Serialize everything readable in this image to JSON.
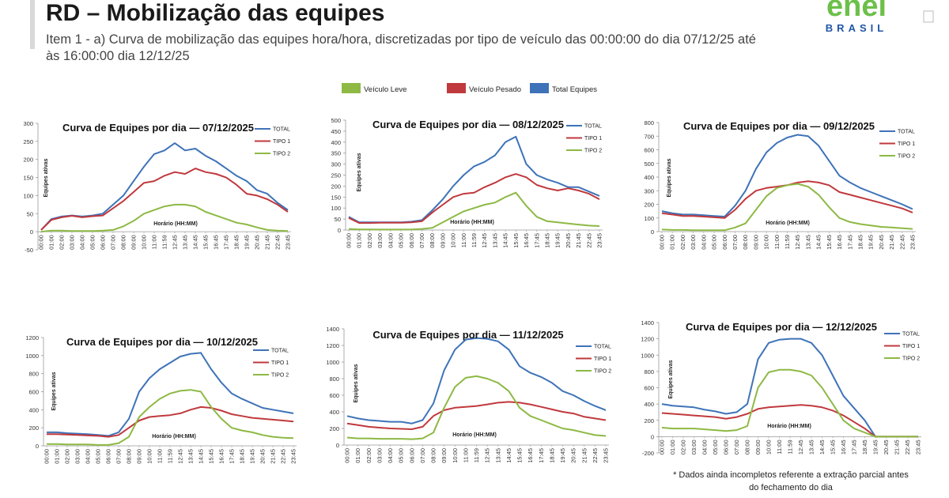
{
  "header": {
    "title": "RD – Mobilização das equipes",
    "subtitle": [
      "Item 1 - a) Curva de mobilização das equipes hora/hora, discretizadas por tipo de veículo das 00:00:00 do dia 07/12/25 até",
      "às 16:00:00 dia 12/12/25"
    ],
    "logo": {
      "name": "enel",
      "country": "BRASIL"
    }
  },
  "legend": [
    {
      "label": "Veículo Leve",
      "color": "#8db944"
    },
    {
      "label": "Veículo Pesado",
      "color": "#c0393d"
    },
    {
      "label": "Total Equipes",
      "color": "#3e73b8"
    }
  ],
  "footnote": [
    "* Dados ainda incompletos referente a extração parcial antes",
    "do fechamento do dia"
  ],
  "chart_data": [
    {
      "type": "line",
      "title": "Curva de Equipes por dia — 07/12/2025",
      "x_label": "Horário (HH:MM)",
      "y_label": "Equipes ativas",
      "categories": [
        "00:00",
        "01:00",
        "02:00",
        "03:00",
        "04:00",
        "05:00",
        "06:00",
        "07:00",
        "08:00",
        "09:00",
        "10:00",
        "11:00",
        "11:59",
        "12:45",
        "13:45",
        "14:45",
        "15:45",
        "16:45",
        "17:45",
        "18:45",
        "19:45",
        "20:45",
        "21:45",
        "22:45",
        "23:45"
      ],
      "ylim": [
        -50,
        300
      ],
      "yticks": [
        -50,
        0,
        50,
        100,
        150,
        200,
        250,
        300
      ],
      "series": [
        {
          "name": "TOTAL",
          "color": "#3e73b8",
          "values": [
            5,
            35,
            42,
            45,
            42,
            45,
            50,
            75,
            100,
            140,
            180,
            215,
            225,
            245,
            225,
            230,
            210,
            195,
            175,
            155,
            140,
            115,
            105,
            80,
            60
          ]
        },
        {
          "name": "TIPO 1",
          "color": "#c0393d",
          "values": [
            5,
            33,
            40,
            44,
            40,
            43,
            45,
            65,
            85,
            110,
            135,
            140,
            155,
            165,
            160,
            175,
            165,
            160,
            150,
            130,
            105,
            100,
            90,
            75,
            55
          ]
        },
        {
          "name": "TIPO 2",
          "color": "#8db944",
          "values": [
            0,
            3,
            3,
            2,
            2,
            2,
            3,
            5,
            15,
            30,
            50,
            60,
            70,
            75,
            75,
            70,
            55,
            45,
            35,
            25,
            20,
            12,
            5,
            3,
            2
          ]
        }
      ]
    },
    {
      "type": "line",
      "title": "Curva de Equipes por dia — 08/12/2025",
      "x_label": "Horário (HH:MM)",
      "y_label": "Equipes ativas",
      "categories": [
        "00:00",
        "01:00",
        "02:00",
        "03:00",
        "04:00",
        "05:00",
        "06:00",
        "07:00",
        "08:00",
        "09:00",
        "10:00",
        "11:00",
        "11:59",
        "12:45",
        "13:45",
        "14:45",
        "15:45",
        "16:45",
        "17:45",
        "18:45",
        "19:45",
        "20:45",
        "21:45",
        "22:45",
        "23:45"
      ],
      "ylim": [
        0,
        500
      ],
      "yticks": [
        0,
        50,
        100,
        150,
        200,
        250,
        300,
        350,
        400,
        450,
        500
      ],
      "series": [
        {
          "name": "TOTAL",
          "color": "#3e73b8",
          "values": [
            60,
            35,
            35,
            35,
            35,
            35,
            38,
            45,
            90,
            140,
            200,
            250,
            290,
            310,
            340,
            400,
            425,
            300,
            250,
            230,
            215,
            195,
            195,
            175,
            155
          ]
        },
        {
          "name": "TIPO 1",
          "color": "#c0393d",
          "values": [
            55,
            32,
            32,
            33,
            33,
            33,
            35,
            40,
            80,
            115,
            150,
            165,
            170,
            195,
            215,
            240,
            255,
            240,
            205,
            190,
            180,
            190,
            180,
            165,
            140
          ]
        },
        {
          "name": "TIPO 2",
          "color": "#8db944",
          "values": [
            5,
            3,
            3,
            2,
            2,
            2,
            3,
            5,
            10,
            35,
            60,
            85,
            100,
            115,
            125,
            150,
            170,
            110,
            60,
            40,
            35,
            30,
            25,
            20,
            18
          ]
        }
      ]
    },
    {
      "type": "line",
      "title": "Curva de Equipes por dia — 09/12/2025",
      "x_label": "Horário (HH:MM)",
      "y_label": "Equipes ativas",
      "categories": [
        "00:00",
        "01:00",
        "02:00",
        "03:00",
        "04:00",
        "05:00",
        "06:00",
        "07:00",
        "08:00",
        "09:00",
        "10:00",
        "11:00",
        "11:59",
        "12:45",
        "13:45",
        "14:45",
        "15:45",
        "16:45",
        "17:45",
        "18:45",
        "19:45",
        "20:45",
        "21:45",
        "22:45",
        "23:45"
      ],
      "ylim": [
        0,
        800
      ],
      "yticks": [
        0,
        100,
        200,
        300,
        400,
        500,
        600,
        700,
        800
      ],
      "series": [
        {
          "name": "TOTAL",
          "color": "#3e73b8",
          "values": [
            150,
            135,
            125,
            125,
            120,
            115,
            110,
            190,
            300,
            460,
            580,
            650,
            690,
            710,
            700,
            630,
            520,
            410,
            360,
            320,
            290,
            260,
            230,
            200,
            165
          ]
        },
        {
          "name": "TIPO 1",
          "color": "#c0393d",
          "values": [
            135,
            125,
            115,
            115,
            110,
            105,
            100,
            160,
            240,
            300,
            320,
            330,
            340,
            360,
            370,
            360,
            340,
            290,
            270,
            250,
            230,
            210,
            190,
            170,
            140
          ]
        },
        {
          "name": "TIPO 2",
          "color": "#8db944",
          "values": [
            15,
            12,
            12,
            10,
            10,
            10,
            10,
            30,
            60,
            160,
            260,
            320,
            340,
            350,
            330,
            270,
            180,
            100,
            70,
            55,
            45,
            35,
            30,
            25,
            20
          ]
        }
      ]
    },
    {
      "type": "line",
      "title": "Curva de Equipes por dia — 10/12/2025",
      "x_label": "Horário (HH:MM)",
      "y_label": "Equipes ativas",
      "categories": [
        "00:00",
        "01:00",
        "02:00",
        "03:00",
        "04:00",
        "05:00",
        "06:00",
        "07:00",
        "08:00",
        "09:00",
        "10:00",
        "11:00",
        "11:59",
        "12:45",
        "13:45",
        "14:45",
        "15:45",
        "16:45",
        "17:45",
        "18:45",
        "19:45",
        "20:45",
        "21:45",
        "22:45",
        "23:45"
      ],
      "ylim": [
        0,
        1200
      ],
      "yticks": [
        0,
        200,
        400,
        600,
        800,
        1000,
        1200
      ],
      "series": [
        {
          "name": "TOTAL",
          "color": "#3e73b8",
          "values": [
            150,
            150,
            140,
            135,
            130,
            120,
            110,
            150,
            300,
            600,
            750,
            850,
            920,
            990,
            1020,
            1030,
            850,
            700,
            580,
            520,
            470,
            420,
            400,
            380,
            360
          ]
        },
        {
          "name": "TIPO 1",
          "color": "#c0393d",
          "values": [
            130,
            130,
            125,
            120,
            115,
            110,
            100,
            120,
            200,
            280,
            320,
            330,
            340,
            360,
            400,
            430,
            420,
            390,
            350,
            330,
            310,
            300,
            290,
            280,
            270
          ]
        },
        {
          "name": "TIPO 2",
          "color": "#8db944",
          "values": [
            20,
            20,
            15,
            15,
            15,
            10,
            10,
            30,
            100,
            320,
            430,
            520,
            580,
            610,
            620,
            600,
            430,
            300,
            200,
            170,
            150,
            120,
            100,
            90,
            85
          ]
        }
      ]
    },
    {
      "type": "line",
      "title": "Curva de Equipes por dia — 11/12/2025",
      "x_label": "Horário (HH:MM)",
      "y_label": "Equipes ativas",
      "categories": [
        "00:00",
        "01:00",
        "02:00",
        "03:00",
        "04:00",
        "05:00",
        "06:00",
        "07:00",
        "08:00",
        "09:00",
        "10:00",
        "11:00",
        "11:59",
        "12:45",
        "13:45",
        "14:45",
        "15:45",
        "16:45",
        "17:45",
        "18:45",
        "19:45",
        "20:45",
        "21:45",
        "22:45",
        "23:45"
      ],
      "ylim": [
        0,
        1400
      ],
      "yticks": [
        0,
        200,
        400,
        600,
        800,
        1000,
        1200,
        1400
      ],
      "series": [
        {
          "name": "TOTAL",
          "color": "#3e73b8",
          "values": [
            350,
            320,
            300,
            290,
            280,
            280,
            260,
            300,
            500,
            900,
            1150,
            1270,
            1290,
            1280,
            1250,
            1150,
            950,
            870,
            820,
            750,
            650,
            600,
            530,
            470,
            420
          ]
        },
        {
          "name": "TIPO 1",
          "color": "#c0393d",
          "values": [
            260,
            240,
            220,
            210,
            200,
            195,
            190,
            220,
            350,
            420,
            450,
            460,
            470,
            490,
            510,
            520,
            510,
            490,
            460,
            430,
            400,
            380,
            340,
            320,
            300
          ]
        },
        {
          "name": "TIPO 2",
          "color": "#8db944",
          "values": [
            90,
            80,
            80,
            75,
            75,
            75,
            70,
            80,
            150,
            450,
            700,
            810,
            830,
            800,
            750,
            650,
            450,
            350,
            300,
            250,
            200,
            180,
            150,
            120,
            110
          ]
        }
      ]
    },
    {
      "type": "line",
      "title": "Curva de Equipes por dia — 12/12/2025",
      "x_label": "Horário (HH:MM)",
      "y_label": "Equipes ativas",
      "categories": [
        "00:00",
        "01:00",
        "02:00",
        "03:00",
        "04:00",
        "05:00",
        "06:00",
        "07:00",
        "08:00",
        "09:00",
        "10:00",
        "11:00",
        "11:59",
        "12:45",
        "13:45",
        "14:45",
        "15:45",
        "16:45",
        "17:45",
        "18:45",
        "19:45",
        "20:45",
        "21:45",
        "22:45",
        "23:45"
      ],
      "ylim": [
        -200,
        1400
      ],
      "yticks": [
        -200,
        0,
        200,
        400,
        600,
        800,
        1000,
        1200,
        1400
      ],
      "series": [
        {
          "name": "TOTAL",
          "color": "#3e73b8",
          "values": [
            400,
            380,
            370,
            360,
            330,
            310,
            280,
            300,
            400,
            950,
            1150,
            1190,
            1200,
            1200,
            1150,
            1000,
            750,
            500,
            350,
            200,
            0,
            0,
            0,
            0,
            0
          ]
        },
        {
          "name": "TIPO 1",
          "color": "#c0393d",
          "values": [
            290,
            280,
            270,
            260,
            250,
            240,
            220,
            240,
            280,
            340,
            360,
            370,
            380,
            390,
            380,
            360,
            320,
            260,
            180,
            100,
            0,
            0,
            0,
            0,
            0
          ]
        },
        {
          "name": "TIPO 2",
          "color": "#8db944",
          "values": [
            110,
            100,
            100,
            100,
            90,
            80,
            70,
            80,
            130,
            600,
            790,
            820,
            820,
            800,
            750,
            600,
            400,
            200,
            100,
            50,
            0,
            0,
            0,
            0,
            0
          ]
        }
      ]
    }
  ]
}
